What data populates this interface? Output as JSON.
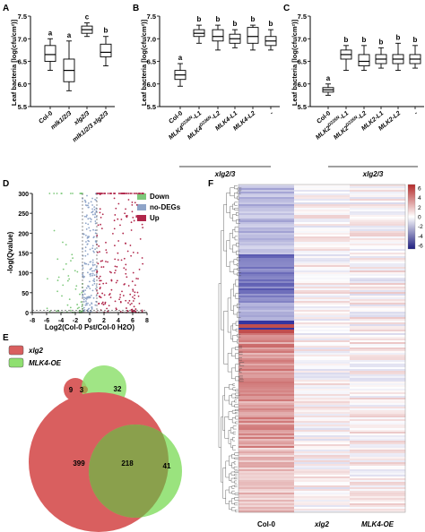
{
  "panels": {
    "A": {
      "letter": "A",
      "ylabel": "Leaf bacteria [log(cfu/cm²)]",
      "yticks": [
        "5.5",
        "6.0",
        "6.5",
        "7.0",
        "7.5"
      ],
      "categories": [
        "Col-0",
        "mlk1/2/3",
        "xlg2/3",
        "mlk1/2/3 xlg2/3"
      ],
      "letters": [
        "a",
        "a",
        "c",
        "b"
      ]
    },
    "B": {
      "letter": "B",
      "ylabel": "Leaf bacteria [log(cfu/cm²)]",
      "yticks": [
        "5.5",
        "6.0",
        "6.5",
        "7.0",
        "7.5"
      ],
      "categories": [
        "Col-0",
        "MLK4^D236N-L1",
        "MLK4^D236N-L2",
        "MLK4-L1",
        "MLK4-L2",
        "-"
      ],
      "letters": [
        "a",
        "b",
        "b",
        "b",
        "b",
        "b"
      ],
      "group_label": "xlg2/3"
    },
    "C": {
      "letter": "C",
      "ylabel": "Leaf bacteria [log(cfu/cm²)]",
      "yticks": [
        "5.5",
        "6.0",
        "6.5",
        "7.0",
        "7.5"
      ],
      "categories": [
        "Col-0",
        "MLK2^D235N-L1",
        "MLK2^D235N-L2",
        "MLK2-L1",
        "MLK2-L2",
        "-"
      ],
      "letters": [
        "a",
        "b",
        "b",
        "b",
        "b",
        "b"
      ],
      "group_label": "xlg2/3"
    },
    "D": {
      "letter": "D",
      "ylabel": "-log(Qvalue)",
      "xlabel": "Log2(Col-0 Pst/Col-0 H2O)",
      "yticks": [
        "0",
        "50",
        "100",
        "150",
        "200",
        "250",
        "300"
      ],
      "xticks": [
        "-8",
        "-6",
        "-4",
        "-2",
        "0",
        "2",
        "4",
        "6",
        "8"
      ],
      "legend": [
        "Down",
        "no-DEGs",
        "Up"
      ]
    },
    "E": {
      "letter": "E",
      "legend": [
        "xlg2",
        "MLK4-OE"
      ],
      "top_venn": {
        "left_only": "9",
        "overlap": "3",
        "right_only": "32"
      },
      "bottom_venn": {
        "left_only": "399",
        "overlap": "218",
        "right_only": "41"
      }
    },
    "F": {
      "letter": "F",
      "columns": [
        "Col-0",
        "xlg2",
        "MLK4-OE"
      ],
      "scale_ticks": [
        "6",
        "4",
        "2",
        "0",
        "-2",
        "-4",
        "-6"
      ]
    }
  },
  "colors": {
    "down": "#7dc87a",
    "nodeg": "#8ea4c8",
    "up": "#b0264a",
    "venn_red": "#d95f5f",
    "venn_green": "#8fe070",
    "heat_blue": "#3535a0",
    "heat_red": "#b52a2a"
  },
  "chart_data": [
    {
      "type": "box",
      "panel": "A",
      "categories": [
        "Col-0",
        "mlk1/2/3",
        "xlg2/3",
        "mlk1/2/3 xlg2/3"
      ],
      "ylim": [
        5.5,
        7.5
      ],
      "ylabel": "Leaf bacteria [log(cfu/cm²)]",
      "boxes": [
        {
          "min": 6.3,
          "q1": 6.5,
          "median": 6.65,
          "q3": 6.85,
          "max": 7.0
        },
        {
          "min": 5.85,
          "q1": 6.05,
          "median": 6.3,
          "q3": 6.55,
          "max": 6.95
        },
        {
          "min": 7.05,
          "q1": 7.12,
          "median": 7.2,
          "q3": 7.28,
          "max": 7.35
        },
        {
          "min": 6.4,
          "q1": 6.6,
          "median": 6.7,
          "q3": 6.88,
          "max": 7.05
        }
      ]
    },
    {
      "type": "box",
      "panel": "B",
      "categories": [
        "Col-0",
        "MLK4^D236N-L1",
        "MLK4^D236N-L2",
        "MLK4-L1",
        "MLK4-L2",
        "-"
      ],
      "ylim": [
        5.5,
        7.5
      ],
      "ylabel": "Leaf bacteria [log(cfu/cm²)]",
      "boxes": [
        {
          "min": 5.95,
          "q1": 6.1,
          "median": 6.2,
          "q3": 6.3,
          "max": 6.45
        },
        {
          "min": 6.9,
          "q1": 7.05,
          "median": 7.12,
          "q3": 7.2,
          "max": 7.3
        },
        {
          "min": 6.75,
          "q1": 6.95,
          "median": 7.05,
          "q3": 7.2,
          "max": 7.3
        },
        {
          "min": 6.8,
          "q1": 6.9,
          "median": 7.0,
          "q3": 7.1,
          "max": 7.2
        },
        {
          "min": 6.75,
          "q1": 6.9,
          "median": 7.05,
          "q3": 7.25,
          "max": 7.3
        },
        {
          "min": 6.75,
          "q1": 6.85,
          "median": 6.95,
          "q3": 7.05,
          "max": 7.2
        }
      ]
    },
    {
      "type": "box",
      "panel": "C",
      "categories": [
        "Col-0",
        "MLK2^D235N-L1",
        "MLK2^D235N-L2",
        "MLK2-L1",
        "MLK2-L2",
        "-"
      ],
      "ylim": [
        5.5,
        7.5
      ],
      "ylabel": "Leaf bacteria [log(cfu/cm²)]",
      "boxes": [
        {
          "min": 5.75,
          "q1": 5.82,
          "median": 5.87,
          "q3": 5.92,
          "max": 6.0
        },
        {
          "min": 6.3,
          "q1": 6.55,
          "median": 6.65,
          "q3": 6.75,
          "max": 6.85
        },
        {
          "min": 6.3,
          "q1": 6.4,
          "median": 6.5,
          "q3": 6.65,
          "max": 6.85
        },
        {
          "min": 6.35,
          "q1": 6.45,
          "median": 6.55,
          "q3": 6.65,
          "max": 6.8
        },
        {
          "min": 6.3,
          "q1": 6.45,
          "median": 6.55,
          "q3": 6.65,
          "max": 6.9
        },
        {
          "min": 6.35,
          "q1": 6.45,
          "median": 6.55,
          "q3": 6.65,
          "max": 6.85
        }
      ]
    },
    {
      "type": "scatter",
      "panel": "D",
      "xlim": [
        -8,
        8
      ],
      "ylim": [
        0,
        300
      ],
      "xlabel": "Log2(Col-0 Pst/Col-0 H2O)",
      "ylabel": "-log(Qvalue)",
      "series": [
        {
          "name": "Down",
          "xrange": [
            -6,
            -1
          ],
          "yrange": [
            0,
            300
          ]
        },
        {
          "name": "no-DEGs",
          "xrange": [
            -1,
            1
          ],
          "yrange": [
            0,
            300
          ]
        },
        {
          "name": "Up",
          "xrange": [
            1,
            7.5
          ],
          "yrange": [
            0,
            300
          ]
        }
      ]
    },
    {
      "type": "venn",
      "panel": "E",
      "sets": [
        "xlg2",
        "MLK4-OE"
      ],
      "groups": [
        {
          "only_a": 9,
          "both": 3,
          "only_b": 32
        },
        {
          "only_a": 399,
          "both": 218,
          "only_b": 41
        }
      ]
    },
    {
      "type": "heatmap",
      "panel": "F",
      "columns": [
        "Col-0",
        "xlg2",
        "MLK4-OE"
      ],
      "colorbar": [
        6,
        -6
      ]
    }
  ]
}
